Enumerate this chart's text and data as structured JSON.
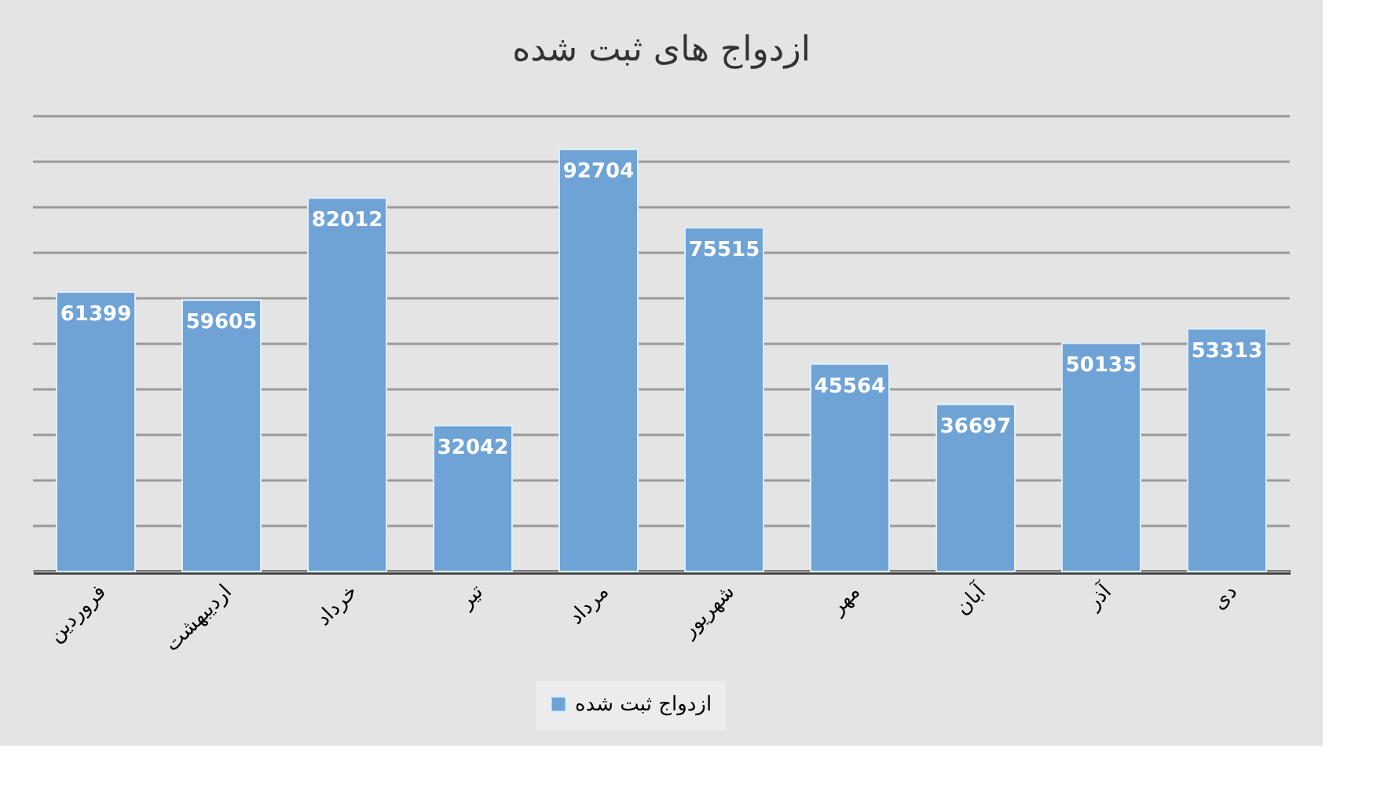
{
  "chart_data": {
    "type": "bar",
    "title": "ازدواج های ثبت شده",
    "categories": [
      "فروردین",
      "اردیبهشت",
      "خرداد",
      "تیر",
      "مرداد",
      "شهریور",
      "مهر",
      "آبان",
      "آذر",
      "دی"
    ],
    "series": [
      {
        "name": "ازدواج ثبت شده",
        "color": "#6fa3d6",
        "values": [
          61399,
          59605,
          82012,
          32042,
          92704,
          75515,
          45564,
          36697,
          50135,
          53313
        ]
      }
    ],
    "ylim": [
      0,
      100000
    ],
    "yticks": [
      {
        "value": 0,
        "label": null
      },
      {
        "value": 10000,
        "label": null
      },
      {
        "value": 20000,
        "label": null
      },
      {
        "value": 30000,
        "label": null
      },
      {
        "value": 40000,
        "label": null
      },
      {
        "value": 50000,
        "label": null
      },
      {
        "value": 60000,
        "label": null
      },
      {
        "value": 70000,
        "label": null
      },
      {
        "value": 80000,
        "label": null
      },
      {
        "value": 90000,
        "label": null
      },
      {
        "value": 100000,
        "label": null
      }
    ],
    "tick_labels": "x",
    "grid": "y",
    "legend": "bottom",
    "data_labels": true
  }
}
